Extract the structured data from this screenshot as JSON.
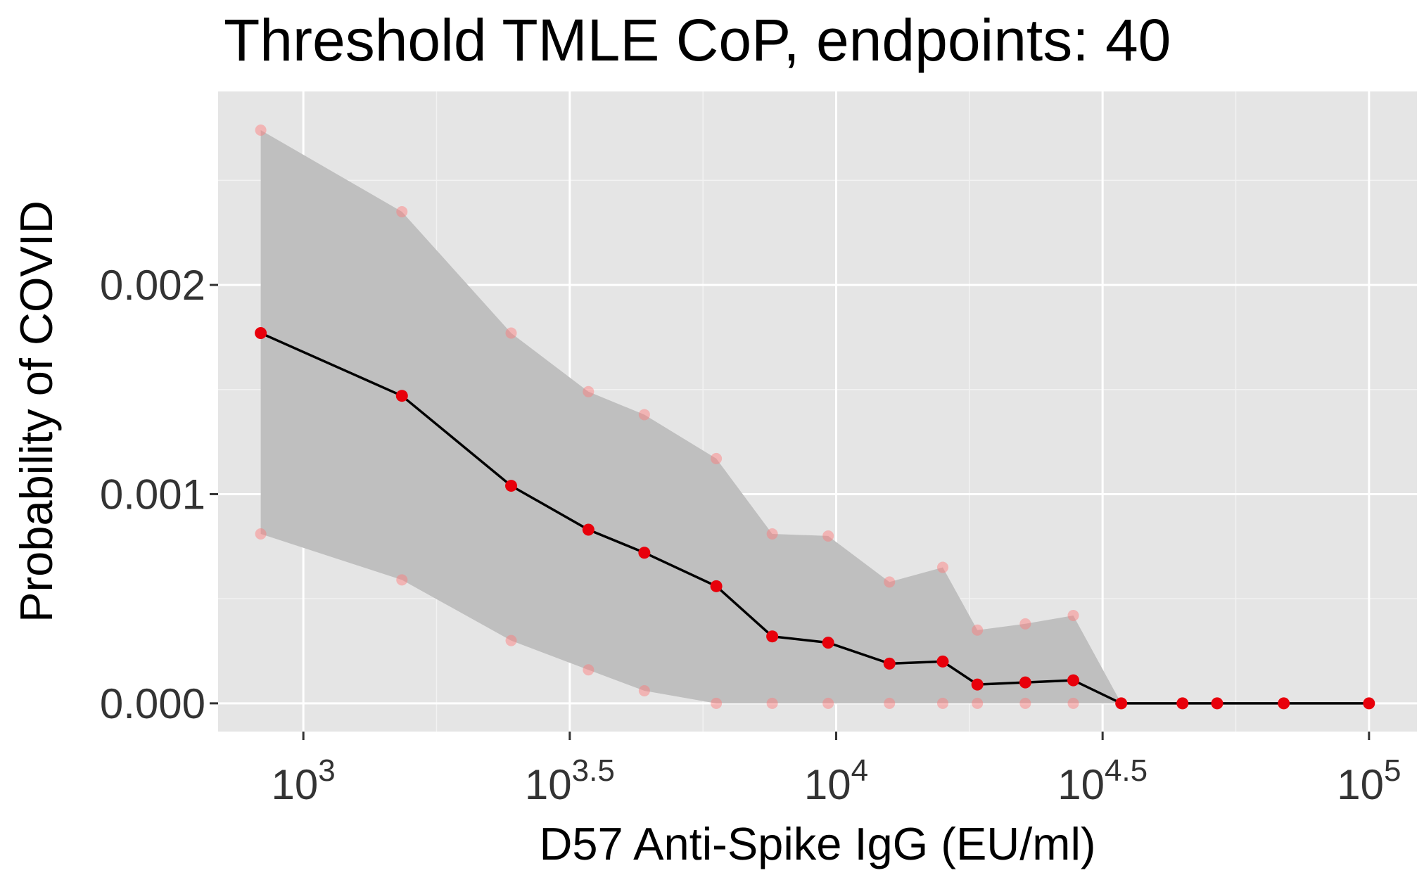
{
  "chart_data": {
    "type": "line",
    "title": "Threshold TMLE CoP, endpoints: 40",
    "xlabel": "D57 Anti-Spike IgG (EU/ml)",
    "ylabel": "Probability of COVID",
    "x_scale": "log10",
    "x_ticks": [
      {
        "value": 3,
        "base": "10",
        "exponent": "3"
      },
      {
        "value": 3.5,
        "base": "10",
        "exponent": "3.5"
      },
      {
        "value": 4,
        "base": "10",
        "exponent": "4"
      },
      {
        "value": 4.5,
        "base": "10",
        "exponent": "4.5"
      },
      {
        "value": 5,
        "base": "10",
        "exponent": "5"
      }
    ],
    "y_ticks": [
      {
        "value": 0.0,
        "label": "0.000"
      },
      {
        "value": 0.001,
        "label": "0.001"
      },
      {
        "value": 0.002,
        "label": "0.002"
      }
    ],
    "xlim": [
      2.84,
      5.09
    ],
    "ylim": [
      -0.000135,
      0.002925
    ],
    "grid": true,
    "background": "#e5e5e5",
    "colors": {
      "band": "#bfbfbf",
      "line": "#000000",
      "point": "#e8000b",
      "bound_point": "#ff7777"
    },
    "series": [
      {
        "x": [
          2.92,
          3.185,
          3.39,
          3.535,
          3.64,
          3.775,
          3.88,
          3.985,
          4.1,
          4.2,
          4.265,
          4.355,
          4.445,
          4.535,
          4.65,
          4.715,
          4.84,
          5.0
        ],
        "estimate": [
          0.00177,
          0.00147,
          0.00104,
          0.00083,
          0.00072,
          0.00056,
          0.00032,
          0.00029,
          0.00019,
          0.0002,
          9e-05,
          0.0001,
          0.00011,
          0.0,
          0.0,
          0.0,
          0.0,
          0.0
        ],
        "upper": [
          0.00274,
          0.00235,
          0.00177,
          0.00149,
          0.00138,
          0.00117,
          0.00081,
          0.0008,
          0.00058,
          0.00065,
          0.00035,
          0.00038,
          0.00042,
          0.0,
          0.0,
          0.0,
          0.0,
          0.0
        ],
        "lower": [
          0.00081,
          0.00059,
          0.0003,
          0.00016,
          6e-05,
          0.0,
          0.0,
          0.0,
          0.0,
          0.0,
          0.0,
          0.0,
          0.0,
          0.0,
          0.0,
          0.0,
          0.0,
          0.0
        ]
      }
    ]
  }
}
